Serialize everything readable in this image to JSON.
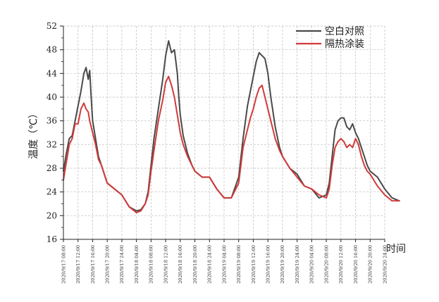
{
  "chart_data": {
    "type": "line",
    "xlabel": "时间",
    "ylabel": "温度（℃）",
    "ylim": [
      16,
      52
    ],
    "yticks": [
      16,
      20,
      24,
      28,
      32,
      36,
      40,
      44,
      48,
      52
    ],
    "x_categories": [
      "2020/9/17 08:00",
      "2020/9/17 12:00",
      "2020/9/17 16:00",
      "2020/9/17 20:00",
      "2020/9/17 24:00",
      "2020/9/18 04:00",
      "2020/9/18 08:00",
      "2020/9/18 12:00",
      "2020/9/18 16:00",
      "2020/9/18 20:00",
      "2020/9/18 24:00",
      "2020/9/19 04:00",
      "2020/9/19 08:00",
      "2020/9/19 12:00",
      "2020/9/19 16:00",
      "2020/9/19 20:00",
      "2020/9/19 24:00",
      "2020/9/20 04:00",
      "2020/9/20 08:00",
      "2020/9/20 12:00",
      "2020/9/20 16:00",
      "2020/9/20 20:00",
      "2020/9/20 24:00"
    ],
    "grid": true,
    "legend_position": "top-right",
    "series": [
      {
        "name": "空白对照",
        "color": "#4a4a4a",
        "x": [
          0,
          0.2,
          0.4,
          0.6,
          0.8,
          1.0,
          1.2,
          1.4,
          1.55,
          1.7,
          1.8,
          1.9,
          2.0,
          2.2,
          2.4,
          2.6,
          2.8,
          3.0,
          3.5,
          4.0,
          4.5,
          5.0,
          5.3,
          5.6,
          5.8,
          6.0,
          6.2,
          6.5,
          6.8,
          7.0,
          7.2,
          7.4,
          7.6,
          7.8,
          7.9,
          8.0,
          8.2,
          8.5,
          8.8,
          9.0,
          9.5,
          10.0,
          10.5,
          11.0,
          11.5,
          12.0,
          12.3,
          12.6,
          12.8,
          13.0,
          13.2,
          13.4,
          13.6,
          13.8,
          14.0,
          14.2,
          14.5,
          14.8,
          15.0,
          15.5,
          16.0,
          16.5,
          17.0,
          17.5,
          18.0,
          18.2,
          18.4,
          18.6,
          18.8,
          19.0,
          19.2,
          19.4,
          19.6,
          19.8,
          20.0,
          20.2,
          20.4,
          20.6,
          20.8,
          21.0,
          21.5,
          22.0,
          22.5,
          23.0
        ],
        "values": [
          27.5,
          30.5,
          33,
          33.5,
          36,
          38.5,
          41,
          44,
          45,
          43,
          44.5,
          40,
          36,
          33,
          30,
          28.5,
          27,
          25.5,
          24.5,
          23.5,
          21.5,
          20.8,
          21,
          22,
          24,
          28.5,
          33,
          38,
          43,
          47,
          49.5,
          47.5,
          48,
          44,
          40,
          37,
          33.5,
          30.5,
          28.5,
          27.5,
          26.5,
          26.5,
          24.5,
          23,
          23,
          26.5,
          33,
          38.5,
          41,
          43.5,
          46,
          47.5,
          47,
          46.5,
          44,
          40,
          35,
          31.5,
          30,
          28,
          27,
          25,
          24.5,
          23,
          23.5,
          25.5,
          30,
          34.5,
          36,
          36.5,
          36.5,
          35,
          34.5,
          35.5,
          34,
          33,
          31.5,
          30,
          28.5,
          27.5,
          26.5,
          24.5,
          23,
          22.5
        ]
      },
      {
        "name": "隔热涂装",
        "color": "#d13a3a",
        "x": [
          0,
          0.2,
          0.4,
          0.6,
          0.8,
          1.0,
          1.2,
          1.4,
          1.55,
          1.7,
          1.8,
          2.0,
          2.2,
          2.4,
          2.6,
          2.8,
          3.0,
          3.5,
          4.0,
          4.5,
          5.0,
          5.3,
          5.6,
          5.8,
          6.0,
          6.2,
          6.5,
          6.8,
          7.0,
          7.2,
          7.4,
          7.6,
          7.8,
          8.0,
          8.2,
          8.5,
          8.8,
          9.0,
          9.5,
          10.0,
          10.5,
          11.0,
          11.5,
          12.0,
          12.3,
          12.6,
          12.8,
          13.0,
          13.2,
          13.4,
          13.6,
          13.8,
          14.0,
          14.2,
          14.5,
          14.8,
          15.0,
          15.5,
          16.0,
          16.5,
          17.0,
          17.5,
          18.0,
          18.2,
          18.4,
          18.6,
          18.8,
          19.0,
          19.2,
          19.4,
          19.6,
          19.8,
          20.0,
          20.2,
          20.4,
          20.6,
          20.8,
          21.0,
          21.5,
          22.0,
          22.5,
          23.0
        ],
        "values": [
          26,
          29,
          32,
          33,
          35.5,
          35.5,
          38,
          39,
          38,
          37.5,
          36,
          34,
          32,
          29.5,
          28.5,
          27,
          25.5,
          24.5,
          23.5,
          21.5,
          20.5,
          20.8,
          22,
          23.5,
          27.5,
          31,
          36,
          39.5,
          42.5,
          43.5,
          42,
          40,
          37,
          34,
          32,
          30,
          28.5,
          27.5,
          26.5,
          26.5,
          24.5,
          23,
          23,
          25.5,
          31.5,
          34.5,
          36.5,
          38,
          40,
          41.5,
          42,
          40,
          38,
          36,
          33,
          31,
          30,
          28,
          26.5,
          25,
          24.5,
          23.5,
          23,
          24.5,
          28.5,
          31.5,
          32.5,
          33,
          32.5,
          31.5,
          32,
          31.5,
          33,
          32,
          30,
          28.5,
          27.5,
          27,
          25,
          23.5,
          22.5,
          22.5
        ]
      }
    ]
  }
}
